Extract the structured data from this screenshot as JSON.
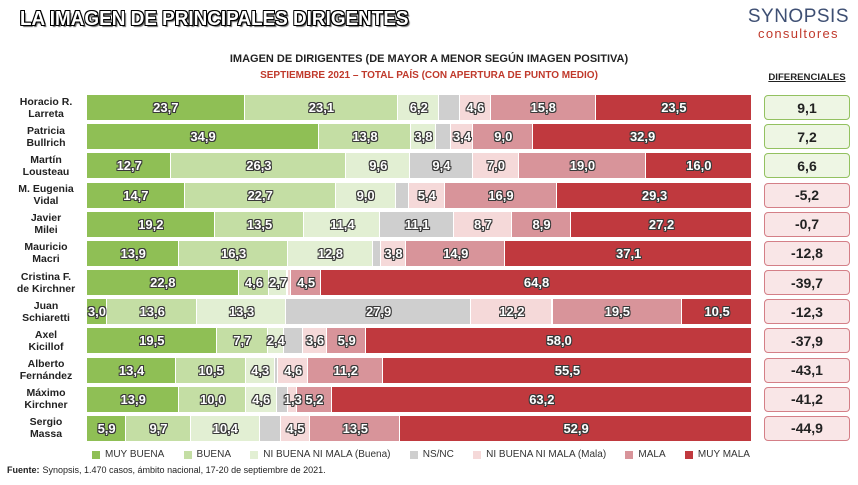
{
  "header": {
    "title": "LA IMAGEN DE PRINCIPALES DIRIGENTES",
    "logo_main": "SYNOPSIS",
    "logo_sub": "consultores"
  },
  "chart_data": {
    "type": "bar",
    "horizontal": true,
    "stacked": true,
    "title": "IMAGEN DE DIRIGENTES (DE MAYOR A MENOR SEGÚN IMAGEN POSITIVA)",
    "subtitle": "SEPTIEMBRE 2021 – TOTAL PAÍS (CON APERTURA DE PUNTO MEDIO)",
    "xlim": [
      0,
      100
    ],
    "grid": false,
    "legend": "bottom",
    "categories": [
      [
        "Horacio R.",
        "Larreta"
      ],
      [
        "Patricia",
        "Bullrich"
      ],
      [
        "Martín",
        "Lousteau"
      ],
      [
        "M. Eugenia",
        "Vidal"
      ],
      [
        "Javier",
        "Milei"
      ],
      [
        "Mauricio",
        "Macri"
      ],
      [
        "Cristina F.",
        "de Kirchner"
      ],
      [
        "Juan",
        "Schiaretti"
      ],
      [
        "Axel",
        "Kicillof"
      ],
      [
        "Alberto",
        "Fernández"
      ],
      [
        "Máximo",
        "Kirchner"
      ],
      [
        "Sergio",
        "Massa"
      ]
    ],
    "series": [
      {
        "name": "MUY BUENA",
        "color": "#8fbf55",
        "values": [
          23.7,
          34.9,
          12.7,
          14.7,
          19.2,
          13.9,
          22.8,
          3.0,
          19.5,
          13.4,
          13.9,
          5.9
        ],
        "labels": [
          "23,7",
          "34,9",
          "12,7",
          "14,7",
          "19,2",
          "13,9",
          "22,8",
          "3,0",
          "19,5",
          "13,4",
          "13,9",
          "5,9"
        ]
      },
      {
        "name": "BUENA",
        "color": "#c4dea4",
        "values": [
          23.1,
          13.8,
          26.3,
          22.7,
          13.5,
          16.3,
          4.6,
          13.6,
          7.7,
          10.5,
          10.0,
          9.7
        ],
        "labels": [
          "23,1",
          "13,8",
          "26,3",
          "22,7",
          "13,5",
          "16,3",
          "4,6",
          "13,6",
          "7,7",
          "10,5",
          "10,0",
          "9,7"
        ]
      },
      {
        "name": "NI BUENA NI MALA (Buena)",
        "color": "#e2efd3",
        "values": [
          6.2,
          3.8,
          9.6,
          9.0,
          11.4,
          12.8,
          2.7,
          13.3,
          2.4,
          4.3,
          4.6,
          10.4
        ],
        "labels": [
          "6,2",
          "3,8",
          "9,6",
          "9,0",
          "11,4",
          "12,8",
          "2,7",
          "13,3",
          "2,4",
          "4,3",
          "4,6",
          "10,4"
        ]
      },
      {
        "name": "NS/NC",
        "color": "#cfcfcf",
        "values": [
          3.1,
          2.2,
          9.4,
          2.0,
          11.1,
          1.2,
          0.1,
          27.9,
          2.9,
          0.5,
          1.8,
          3.1
        ],
        "labels": [
          "",
          "",
          "9,4",
          "",
          "11,1",
          "",
          "",
          "27,9",
          "",
          "",
          "",
          ""
        ]
      },
      {
        "name": "NI BUENA NI MALA (Mala)",
        "color": "#f5d9d9",
        "values": [
          4.6,
          3.4,
          7.0,
          5.4,
          8.7,
          3.8,
          0.5,
          12.2,
          3.6,
          4.6,
          1.3,
          4.5
        ],
        "labels": [
          "4,6",
          "3,4",
          "7,0",
          "5,4",
          "8,7",
          "3,8",
          "",
          "12,2",
          "3,6",
          "4,6",
          "1,3",
          "4,5"
        ]
      },
      {
        "name": "MALA",
        "color": "#d8949a",
        "values": [
          15.8,
          9.0,
          19.0,
          16.9,
          8.9,
          14.9,
          4.5,
          19.5,
          5.9,
          11.2,
          5.2,
          13.5
        ],
        "labels": [
          "15,8",
          "9,0",
          "19,0",
          "16,9",
          "8,9",
          "14,9",
          "4,5",
          "19,5",
          "5,9",
          "11,2",
          "5,2",
          "13,5"
        ]
      },
      {
        "name": "MUY MALA",
        "color": "#c0393e",
        "values": [
          23.5,
          32.9,
          16.0,
          29.3,
          27.2,
          37.1,
          64.8,
          10.5,
          58.0,
          55.5,
          63.2,
          52.9
        ],
        "labels": [
          "23,5",
          "32,9",
          "16,0",
          "29,3",
          "27,2",
          "37,1",
          "64,8",
          "10,5",
          "58,0",
          "55,5",
          "63,2",
          "52,9"
        ]
      }
    ],
    "differentials": {
      "title": "DIFERENCIALES",
      "values": [
        "9,1",
        "7,2",
        "6,6",
        "-5,2",
        "-0,7",
        "-12,8",
        "-39,7",
        "-12,3",
        "-37,9",
        "-43,1",
        "-41,2",
        "-44,9"
      ],
      "positive_border": "#93c160",
      "positive_fill": "#eef6e4",
      "negative_border": "#d47f87",
      "negative_fill": "#f9e6e7"
    }
  },
  "footer": {
    "source_label": "Fuente:",
    "source_text": "Synopsis, 1.470 casos, ámbito nacional, 17-20 de septiembre de 2021."
  }
}
